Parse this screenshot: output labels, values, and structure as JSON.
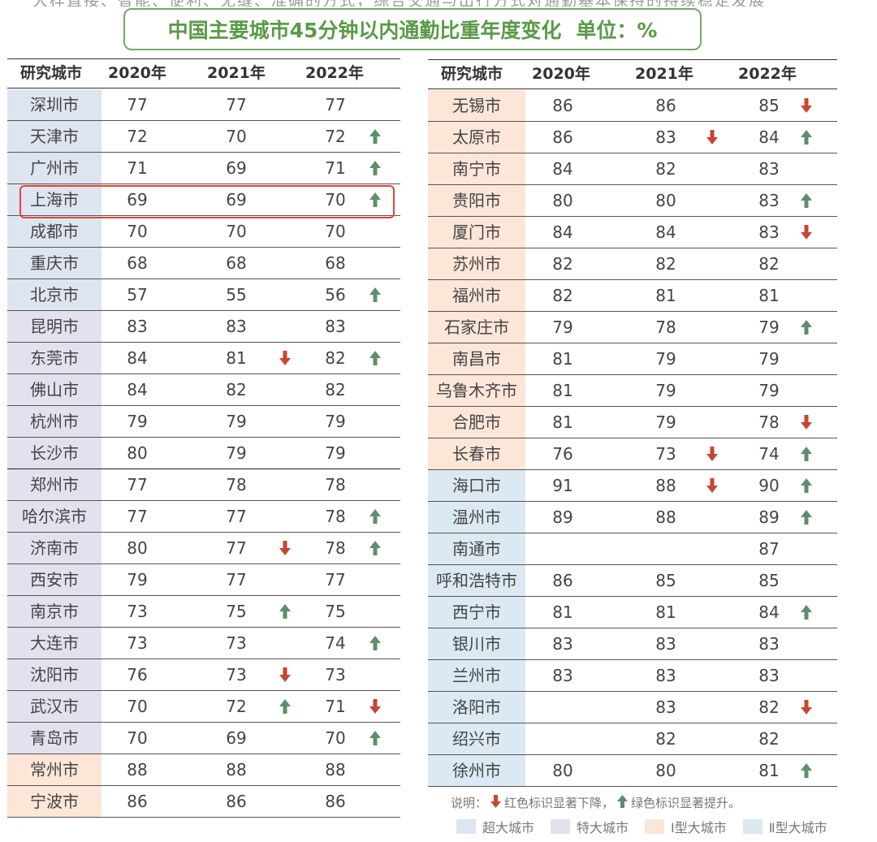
{
  "top_text": "大样直接、智能、便利、无缝、准确的方式，综合交通与出行方式对通勤基本保持的持续稳定发展",
  "title": "中国主要城市45分钟以内通勤比重年度变化",
  "unit": "单位：%",
  "headers": {
    "city": "研究城市",
    "y2020": "2020年",
    "y2021": "2021年",
    "y2022": "2022年"
  },
  "colors": {
    "up": "#5b8f6e",
    "down": "#c7462f",
    "super": "#dde5f0",
    "mega": "#e4e1ee",
    "t1": "#fbe6d7",
    "t2": "#dce9f2",
    "highlight": "#e0453a"
  },
  "left_rows": [
    {
      "city": "深圳市",
      "cat": "super",
      "v2020": "77",
      "v2021": "77",
      "v2022": "77",
      "a2021": "",
      "a2022": ""
    },
    {
      "city": "天津市",
      "cat": "super",
      "v2020": "72",
      "v2021": "70",
      "v2022": "72",
      "a2021": "",
      "a2022": "up"
    },
    {
      "city": "广州市",
      "cat": "super",
      "v2020": "71",
      "v2021": "69",
      "v2022": "71",
      "a2021": "",
      "a2022": "up"
    },
    {
      "city": "上海市",
      "cat": "super",
      "v2020": "69",
      "v2021": "69",
      "v2022": "70",
      "a2021": "",
      "a2022": "up"
    },
    {
      "city": "成都市",
      "cat": "super",
      "v2020": "70",
      "v2021": "70",
      "v2022": "70",
      "a2021": "",
      "a2022": ""
    },
    {
      "city": "重庆市",
      "cat": "super",
      "v2020": "68",
      "v2021": "68",
      "v2022": "68",
      "a2021": "",
      "a2022": ""
    },
    {
      "city": "北京市",
      "cat": "super",
      "v2020": "57",
      "v2021": "55",
      "v2022": "56",
      "a2021": "",
      "a2022": "up"
    },
    {
      "city": "昆明市",
      "cat": "mega",
      "v2020": "83",
      "v2021": "83",
      "v2022": "83",
      "a2021": "",
      "a2022": ""
    },
    {
      "city": "东莞市",
      "cat": "mega",
      "v2020": "84",
      "v2021": "81",
      "v2022": "82",
      "a2021": "down",
      "a2022": "up"
    },
    {
      "city": "佛山市",
      "cat": "mega",
      "v2020": "84",
      "v2021": "82",
      "v2022": "82",
      "a2021": "",
      "a2022": ""
    },
    {
      "city": "杭州市",
      "cat": "mega",
      "v2020": "79",
      "v2021": "79",
      "v2022": "79",
      "a2021": "",
      "a2022": ""
    },
    {
      "city": "长沙市",
      "cat": "mega",
      "v2020": "80",
      "v2021": "79",
      "v2022": "79",
      "a2021": "",
      "a2022": ""
    },
    {
      "city": "郑州市",
      "cat": "mega",
      "v2020": "77",
      "v2021": "78",
      "v2022": "78",
      "a2021": "",
      "a2022": ""
    },
    {
      "city": "哈尔滨市",
      "cat": "mega",
      "v2020": "77",
      "v2021": "77",
      "v2022": "78",
      "a2021": "",
      "a2022": "up"
    },
    {
      "city": "济南市",
      "cat": "mega",
      "v2020": "80",
      "v2021": "77",
      "v2022": "78",
      "a2021": "down",
      "a2022": "up"
    },
    {
      "city": "西安市",
      "cat": "mega",
      "v2020": "79",
      "v2021": "77",
      "v2022": "77",
      "a2021": "",
      "a2022": ""
    },
    {
      "city": "南京市",
      "cat": "mega",
      "v2020": "73",
      "v2021": "75",
      "v2022": "75",
      "a2021": "up",
      "a2022": ""
    },
    {
      "city": "大连市",
      "cat": "mega",
      "v2020": "73",
      "v2021": "73",
      "v2022": "74",
      "a2021": "",
      "a2022": "up"
    },
    {
      "city": "沈阳市",
      "cat": "mega",
      "v2020": "76",
      "v2021": "73",
      "v2022": "73",
      "a2021": "down",
      "a2022": ""
    },
    {
      "city": "武汉市",
      "cat": "mega",
      "v2020": "70",
      "v2021": "72",
      "v2022": "71",
      "a2021": "up",
      "a2022": "down"
    },
    {
      "city": "青岛市",
      "cat": "mega",
      "v2020": "70",
      "v2021": "69",
      "v2022": "70",
      "a2021": "",
      "a2022": "up"
    },
    {
      "city": "常州市",
      "cat": "t1",
      "v2020": "88",
      "v2021": "88",
      "v2022": "88",
      "a2021": "",
      "a2022": ""
    },
    {
      "city": "宁波市",
      "cat": "t1",
      "v2020": "86",
      "v2021": "86",
      "v2022": "86",
      "a2021": "",
      "a2022": ""
    }
  ],
  "right_rows": [
    {
      "city": "无锡市",
      "cat": "t1",
      "v2020": "86",
      "v2021": "86",
      "v2022": "85",
      "a2021": "",
      "a2022": "down"
    },
    {
      "city": "太原市",
      "cat": "t1",
      "v2020": "86",
      "v2021": "83",
      "v2022": "84",
      "a2021": "down",
      "a2022": "up"
    },
    {
      "city": "南宁市",
      "cat": "t1",
      "v2020": "84",
      "v2021": "82",
      "v2022": "83",
      "a2021": "",
      "a2022": ""
    },
    {
      "city": "贵阳市",
      "cat": "t1",
      "v2020": "80",
      "v2021": "80",
      "v2022": "83",
      "a2021": "",
      "a2022": "up"
    },
    {
      "city": "厦门市",
      "cat": "t1",
      "v2020": "84",
      "v2021": "84",
      "v2022": "83",
      "a2021": "",
      "a2022": "down"
    },
    {
      "city": "苏州市",
      "cat": "t1",
      "v2020": "82",
      "v2021": "82",
      "v2022": "82",
      "a2021": "",
      "a2022": ""
    },
    {
      "city": "福州市",
      "cat": "t1",
      "v2020": "82",
      "v2021": "81",
      "v2022": "81",
      "a2021": "",
      "a2022": ""
    },
    {
      "city": "石家庄市",
      "cat": "t1",
      "v2020": "79",
      "v2021": "78",
      "v2022": "79",
      "a2021": "",
      "a2022": "up"
    },
    {
      "city": "南昌市",
      "cat": "t1",
      "v2020": "81",
      "v2021": "79",
      "v2022": "79",
      "a2021": "",
      "a2022": ""
    },
    {
      "city": "乌鲁木齐市",
      "cat": "t1",
      "v2020": "81",
      "v2021": "79",
      "v2022": "79",
      "a2021": "",
      "a2022": ""
    },
    {
      "city": "合肥市",
      "cat": "t1",
      "v2020": "81",
      "v2021": "79",
      "v2022": "78",
      "a2021": "",
      "a2022": "down"
    },
    {
      "city": "长春市",
      "cat": "t1",
      "v2020": "76",
      "v2021": "73",
      "v2022": "74",
      "a2021": "down",
      "a2022": "up"
    },
    {
      "city": "海口市",
      "cat": "t2",
      "v2020": "91",
      "v2021": "88",
      "v2022": "90",
      "a2021": "down",
      "a2022": "up"
    },
    {
      "city": "温州市",
      "cat": "t2",
      "v2020": "89",
      "v2021": "88",
      "v2022": "89",
      "a2021": "",
      "a2022": "up"
    },
    {
      "city": "南通市",
      "cat": "t2",
      "v2020": "",
      "v2021": "",
      "v2022": "87",
      "a2021": "",
      "a2022": ""
    },
    {
      "city": "呼和浩特市",
      "cat": "t2",
      "v2020": "86",
      "v2021": "85",
      "v2022": "85",
      "a2021": "",
      "a2022": ""
    },
    {
      "city": "西宁市",
      "cat": "t2",
      "v2020": "81",
      "v2021": "81",
      "v2022": "84",
      "a2021": "",
      "a2022": "up"
    },
    {
      "city": "银川市",
      "cat": "t2",
      "v2020": "83",
      "v2021": "83",
      "v2022": "83",
      "a2021": "",
      "a2022": ""
    },
    {
      "city": "兰州市",
      "cat": "t2",
      "v2020": "83",
      "v2021": "83",
      "v2022": "83",
      "a2021": "",
      "a2022": ""
    },
    {
      "city": "洛阳市",
      "cat": "t2",
      "v2020": "",
      "v2021": "83",
      "v2022": "82",
      "a2021": "",
      "a2022": "down"
    },
    {
      "city": "绍兴市",
      "cat": "t2",
      "v2020": "",
      "v2021": "82",
      "v2022": "82",
      "a2021": "",
      "a2022": ""
    },
    {
      "city": "徐州市",
      "cat": "t2",
      "v2020": "80",
      "v2021": "80",
      "v2022": "81",
      "a2021": "",
      "a2022": "up"
    }
  ],
  "note": {
    "prefix": "说明：",
    "down_text": "红色标识显著下降，",
    "up_text": "绿色标识显著提升。"
  },
  "legend": [
    {
      "label": "超大城市",
      "cat": "super"
    },
    {
      "label": "特大城市",
      "cat": "mega"
    },
    {
      "label": "Ⅰ型大城市",
      "cat": "t1"
    },
    {
      "label": "Ⅱ型大城市",
      "cat": "t2"
    }
  ]
}
